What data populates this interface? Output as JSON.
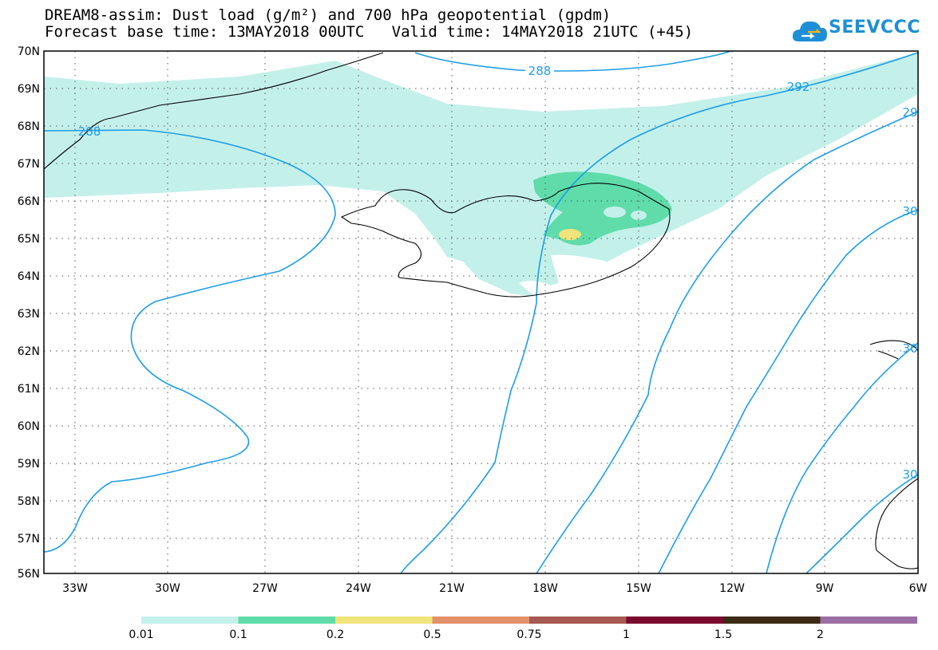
{
  "header": {
    "line1": "DREAM8-assim: Dust load (g/m²) and 700 hPa geopotential (gpdm)",
    "line2": "Forecast base time: 13MAY2018 00UTC   Valid time: 14MAY2018 21UTC (+45)"
  },
  "logo": {
    "text": "SEEVCCC",
    "icon": "cloud-icon"
  },
  "map": {
    "lat_labels": [
      "70N",
      "69N",
      "68N",
      "67N",
      "66N",
      "65N",
      "64N",
      "63N",
      "62N",
      "61N",
      "60N",
      "59N",
      "58N",
      "57N",
      "56N"
    ],
    "lon_labels": [
      "33W",
      "30W",
      "27W",
      "24W",
      "21W",
      "18W",
      "15W",
      "12W",
      "9W",
      "6W"
    ],
    "contour_labels": [
      "288",
      "288",
      "292",
      "29",
      "30",
      "30",
      "30"
    ]
  },
  "legend": {
    "labels": [
      "0.01",
      "0.1",
      "0.2",
      "0.5",
      "0.75",
      "1",
      "1.5",
      "2"
    ],
    "colors": [
      "#c4f0ea",
      "#5fdcaa",
      "#f1e47a",
      "#e2916a",
      "#a65a52",
      "#7a0a2e",
      "#3d2a14",
      "#9b6fa3"
    ]
  }
}
